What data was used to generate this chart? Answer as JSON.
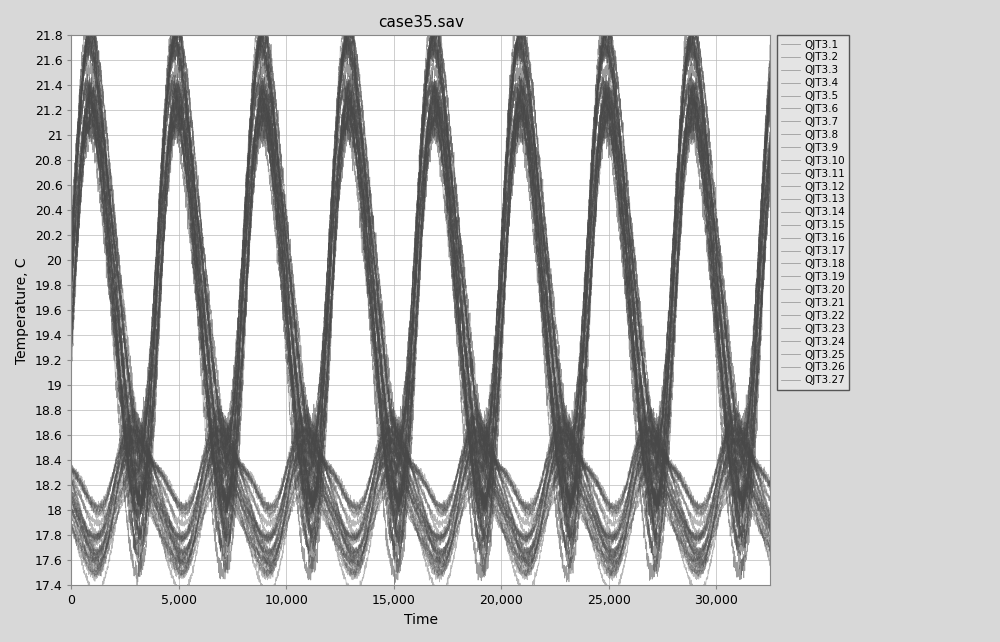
{
  "title": "case35.sav",
  "xlabel": "Time",
  "ylabel": "Temperature, C",
  "ylim": [
    17.4,
    21.8
  ],
  "xlim": [
    0,
    32500
  ],
  "yticks": [
    17.4,
    17.6,
    17.8,
    18.0,
    18.2,
    18.4,
    18.6,
    18.8,
    19.0,
    19.2,
    19.4,
    19.6,
    19.8,
    20.0,
    20.2,
    20.4,
    20.6,
    20.8,
    21.0,
    21.2,
    21.4,
    21.6,
    21.8
  ],
  "xticks": [
    0,
    5000,
    10000,
    15000,
    20000,
    25000,
    30000
  ],
  "xtick_labels": [
    "0",
    "5,000",
    "10,000",
    "15,000",
    "20,000",
    "25,000",
    "30,000"
  ],
  "n_series": 27,
  "series_prefix": "QJT3.",
  "line_color": "#484848",
  "line_alpha": 0.55,
  "line_width": 0.5,
  "background_color": "#d8d8d8",
  "plot_bg_color": "#ffffff",
  "n_points": 5000,
  "period": 4000,
  "base_temp_high": 20.1,
  "base_temp_low": 18.1,
  "amplitude_high": 1.7,
  "amplitude_low": 0.35,
  "figsize": [
    10.0,
    6.42
  ],
  "dpi": 100
}
